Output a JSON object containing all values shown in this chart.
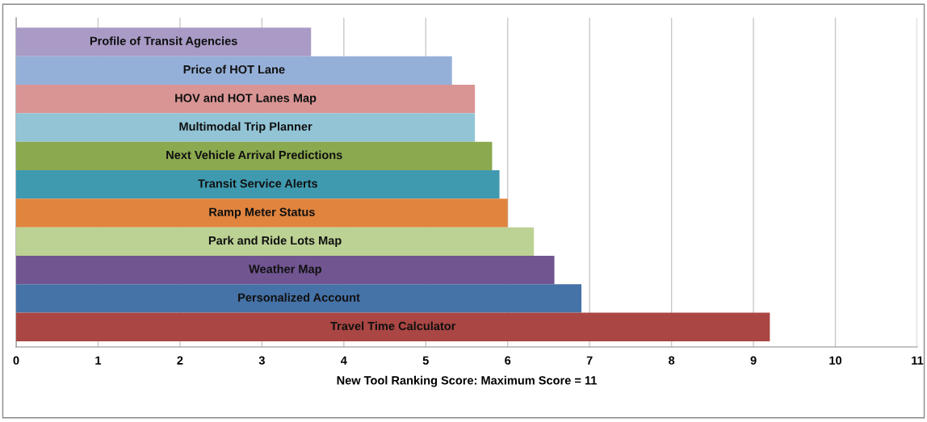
{
  "chart_data": {
    "type": "bar",
    "orientation": "horizontal",
    "xlabel": "New Tool Ranking Score: Maximum Score = 11",
    "categories": [
      "Profile of Transit Agencies",
      "Price of HOT Lane",
      "HOV and HOT Lanes Map",
      "Multimodal Trip Planner",
      "Next Vehicle Arrival Predictions",
      "Transit Service Alerts",
      "Ramp Meter Status",
      "Park and Ride Lots Map",
      "Weather Map",
      "Personalized Account",
      "Travel Time Calculator"
    ],
    "values": [
      3.6,
      5.32,
      5.6,
      5.6,
      5.81,
      5.9,
      6.0,
      6.32,
      6.57,
      6.9,
      9.2
    ],
    "colors": [
      "#a99bc6",
      "#95b0d8",
      "#d99594",
      "#92c4d6",
      "#8ba94f",
      "#3f9ab0",
      "#e0843e",
      "#bcd194",
      "#715591",
      "#4572a7",
      "#aa4643"
    ],
    "xlim": [
      0,
      11
    ],
    "xticks": [
      0,
      1,
      2,
      3,
      4,
      5,
      6,
      7,
      8,
      9,
      10,
      11
    ],
    "grid": "x",
    "legend": false
  }
}
